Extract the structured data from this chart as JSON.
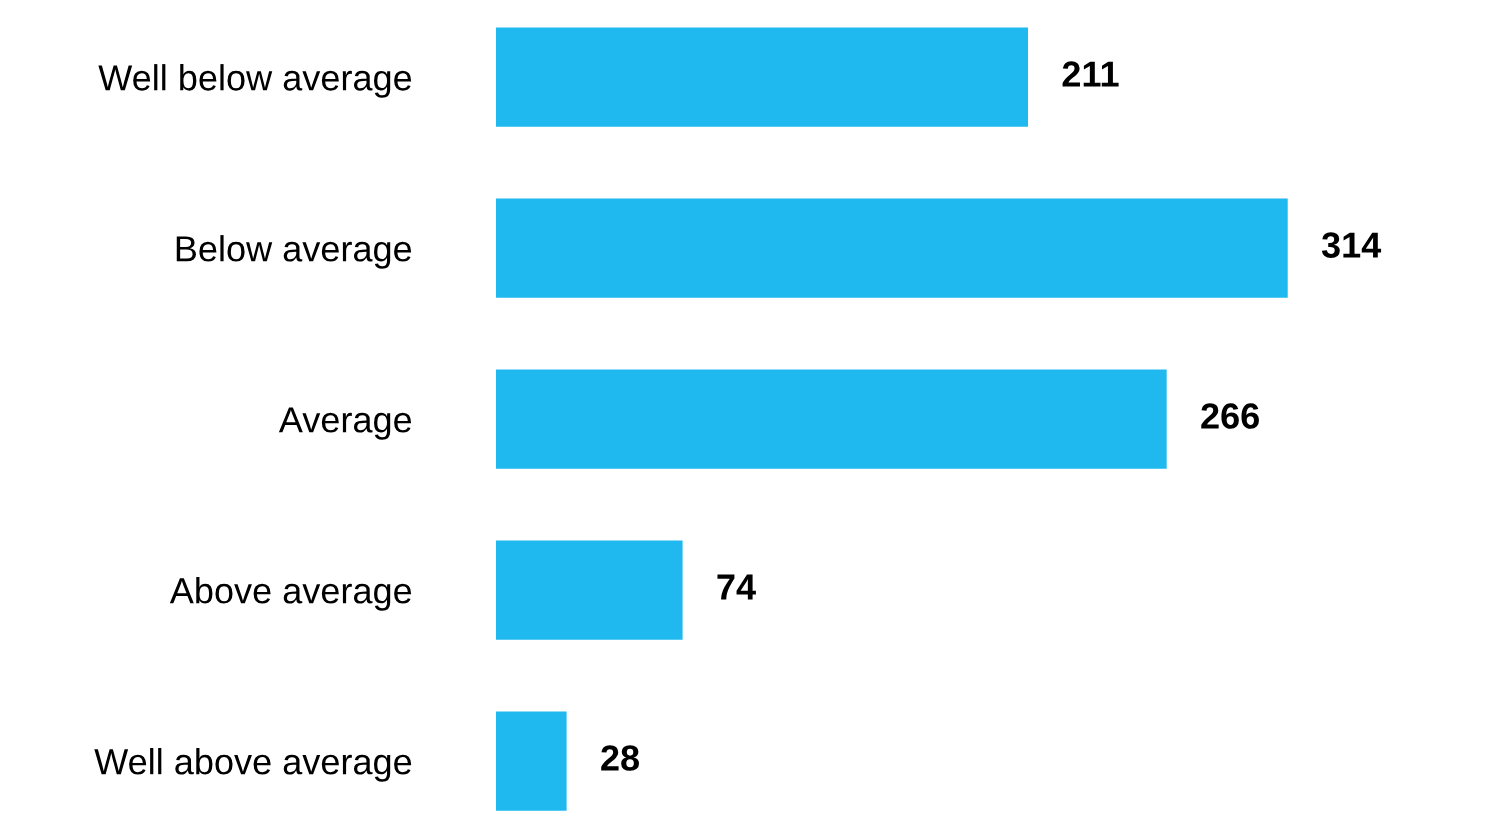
{
  "chart_data": {
    "type": "bar",
    "orientation": "horizontal",
    "categories": [
      "Well below average",
      "Below average",
      "Average",
      "Above average",
      "Well above average"
    ],
    "values": [
      211,
      314,
      266,
      74,
      28
    ],
    "color": "#1fb8ef",
    "data_labels": true,
    "grid": false,
    "legend": false,
    "tick_labels": "y"
  }
}
